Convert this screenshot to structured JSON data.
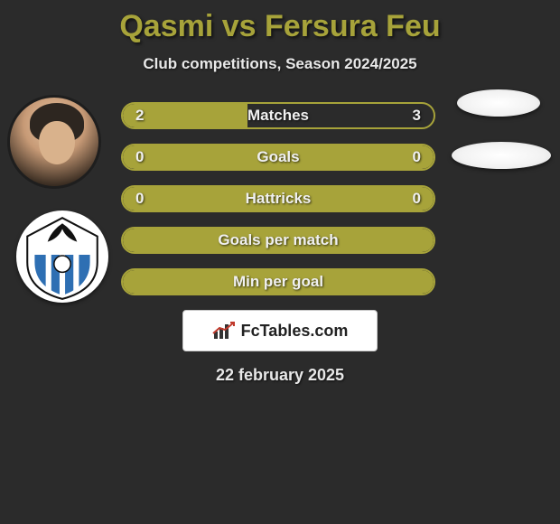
{
  "title": "Qasmi vs Fersura Feu",
  "subtitle": "Club competitions, Season 2024/2025",
  "date": "22 february 2025",
  "logo_text": "FcTables.com",
  "colors": {
    "background": "#2b2b2b",
    "accent": "#a7a33a",
    "bar_fill": "#a7a33a",
    "bar_border": "#a7a33a",
    "text_light": "#f0f0f0"
  },
  "bars": [
    {
      "label": "Matches",
      "left_value": "2",
      "right_value": "3",
      "left_pct": 40,
      "right_pct": 60,
      "show_values": true,
      "filled": "split"
    },
    {
      "label": "Goals",
      "left_value": "0",
      "right_value": "0",
      "left_pct": 0,
      "right_pct": 0,
      "show_values": true,
      "filled": "full"
    },
    {
      "label": "Hattricks",
      "left_value": "0",
      "right_value": "0",
      "left_pct": 0,
      "right_pct": 0,
      "show_values": true,
      "filled": "full"
    },
    {
      "label": "Goals per match",
      "left_value": "",
      "right_value": "",
      "left_pct": 0,
      "right_pct": 0,
      "show_values": false,
      "filled": "full"
    },
    {
      "label": "Min per goal",
      "left_value": "",
      "right_value": "",
      "left_pct": 0,
      "right_pct": 0,
      "show_values": false,
      "filled": "full"
    }
  ]
}
